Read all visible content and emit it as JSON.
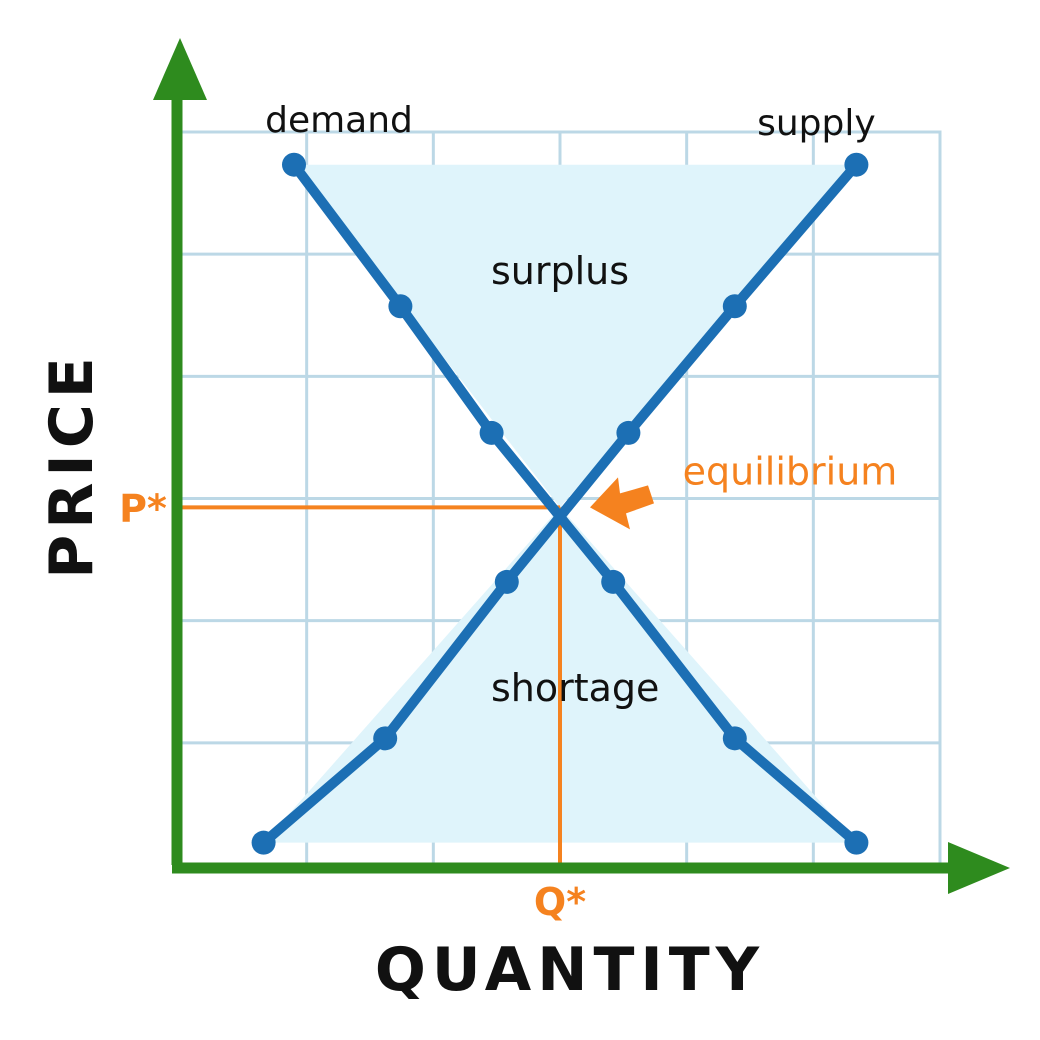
{
  "colors": {
    "axis": "#2e8b1e",
    "curve": "#1c6fb4",
    "accent": "#f5821f",
    "grid": "#bcd8e6",
    "region": "#dff4fb",
    "text": "#111111"
  },
  "chart_data": {
    "type": "line",
    "xlabel": "QUANTITY",
    "ylabel": "PRICE",
    "xlim": [
      0,
      100
    ],
    "ylim": [
      0,
      100
    ],
    "grid": true,
    "series": [
      {
        "name": "demand",
        "points": [
          [
            15,
            94
          ],
          [
            29,
            75
          ],
          [
            41,
            58
          ],
          [
            57,
            38
          ],
          [
            73,
            17
          ],
          [
            89,
            3
          ]
        ]
      },
      {
        "name": "supply",
        "points": [
          [
            11,
            3
          ],
          [
            27,
            17
          ],
          [
            43,
            38
          ],
          [
            59,
            58
          ],
          [
            73,
            75
          ],
          [
            89,
            94
          ]
        ]
      }
    ],
    "equilibrium": {
      "label": "equilibrium",
      "x": 50,
      "y": 48
    },
    "p_star_label": "P*",
    "q_star_label": "Q*",
    "regions": [
      {
        "label": "surplus",
        "x": 50,
        "y": 78
      },
      {
        "label": "shortage",
        "x": 52,
        "y": 22
      }
    ]
  }
}
